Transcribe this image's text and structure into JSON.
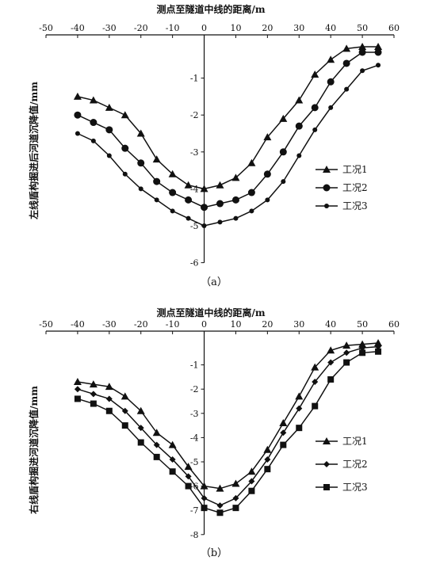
{
  "chart_data": [
    {
      "type": "line",
      "panel_label": "（a）",
      "xlabel": "测点至隧道中线的距离/m",
      "ylabel": "左线盾构掘进后河道沉降值/mm",
      "xlim": [
        -50,
        60
      ],
      "ylim": [
        -6,
        0
      ],
      "x_ticks": [
        -50,
        -40,
        -30,
        -20,
        -10,
        0,
        10,
        20,
        30,
        40,
        50,
        60
      ],
      "y_ticks": [
        -1,
        -2,
        -3,
        -4,
        -5,
        -6
      ],
      "x_axis_position": "top",
      "y_axis_at_x": 0,
      "grid": false,
      "legend_position": "right",
      "x": [
        -40,
        -35,
        -30,
        -25,
        -20,
        -15,
        -10,
        -5,
        0,
        5,
        10,
        15,
        20,
        25,
        30,
        35,
        40,
        45,
        50,
        55
      ],
      "series": [
        {
          "name": "工况1",
          "marker": "triangle",
          "values": [
            -1.5,
            -1.6,
            -1.8,
            -2.0,
            -2.5,
            -3.2,
            -3.6,
            -3.9,
            -4.0,
            -3.9,
            -3.7,
            -3.3,
            -2.6,
            -2.1,
            -1.6,
            -0.9,
            -0.5,
            -0.2,
            -0.15,
            -0.15
          ]
        },
        {
          "name": "工况2",
          "marker": "circle",
          "values": [
            -2.0,
            -2.2,
            -2.4,
            -2.9,
            -3.3,
            -3.8,
            -4.1,
            -4.3,
            -4.5,
            -4.4,
            -4.3,
            -4.1,
            -3.6,
            -3.0,
            -2.3,
            -1.8,
            -1.1,
            -0.6,
            -0.3,
            -0.3
          ]
        },
        {
          "name": "工况3",
          "marker": "dot",
          "values": [
            -2.5,
            -2.7,
            -3.1,
            -3.6,
            -4.0,
            -4.3,
            -4.6,
            -4.8,
            -5.0,
            -4.9,
            -4.8,
            -4.6,
            -4.3,
            -3.8,
            -3.1,
            -2.4,
            -1.8,
            -1.3,
            -0.8,
            -0.65
          ]
        }
      ]
    },
    {
      "type": "line",
      "panel_label": "（b）",
      "xlabel": "测点至隧道中线的距离/m",
      "ylabel": "右线盾构掘进河道沉降值/mm",
      "xlim": [
        -50,
        60
      ],
      "ylim": [
        -8,
        0
      ],
      "x_ticks": [
        -50,
        -40,
        -30,
        -20,
        -10,
        0,
        10,
        20,
        30,
        40,
        50,
        60
      ],
      "y_ticks": [
        -1,
        -2,
        -3,
        -4,
        -5,
        -6,
        -7,
        -8
      ],
      "x_axis_position": "top",
      "y_axis_at_x": 0,
      "grid": false,
      "legend_position": "right",
      "x": [
        -40,
        -35,
        -30,
        -25,
        -20,
        -15,
        -10,
        -5,
        0,
        5,
        10,
        15,
        20,
        25,
        30,
        35,
        40,
        45,
        50,
        55
      ],
      "series": [
        {
          "name": "工况1",
          "marker": "triangle",
          "values": [
            -1.7,
            -1.8,
            -1.9,
            -2.3,
            -2.9,
            -3.8,
            -4.3,
            -5.2,
            -6.0,
            -6.1,
            -5.9,
            -5.4,
            -4.5,
            -3.4,
            -2.3,
            -1.1,
            -0.4,
            -0.2,
            -0.15,
            -0.1
          ]
        },
        {
          "name": "工况2",
          "marker": "diamond",
          "values": [
            -2.0,
            -2.2,
            -2.4,
            -2.9,
            -3.6,
            -4.3,
            -4.9,
            -5.6,
            -6.5,
            -6.8,
            -6.5,
            -5.8,
            -4.9,
            -3.8,
            -2.8,
            -1.7,
            -0.9,
            -0.5,
            -0.3,
            -0.25
          ]
        },
        {
          "name": "工况3",
          "marker": "square",
          "values": [
            -2.4,
            -2.6,
            -2.9,
            -3.5,
            -4.2,
            -4.8,
            -5.4,
            -6.0,
            -6.9,
            -7.1,
            -6.9,
            -6.2,
            -5.3,
            -4.3,
            -3.6,
            -2.7,
            -1.6,
            -0.9,
            -0.5,
            -0.45
          ]
        }
      ]
    }
  ]
}
